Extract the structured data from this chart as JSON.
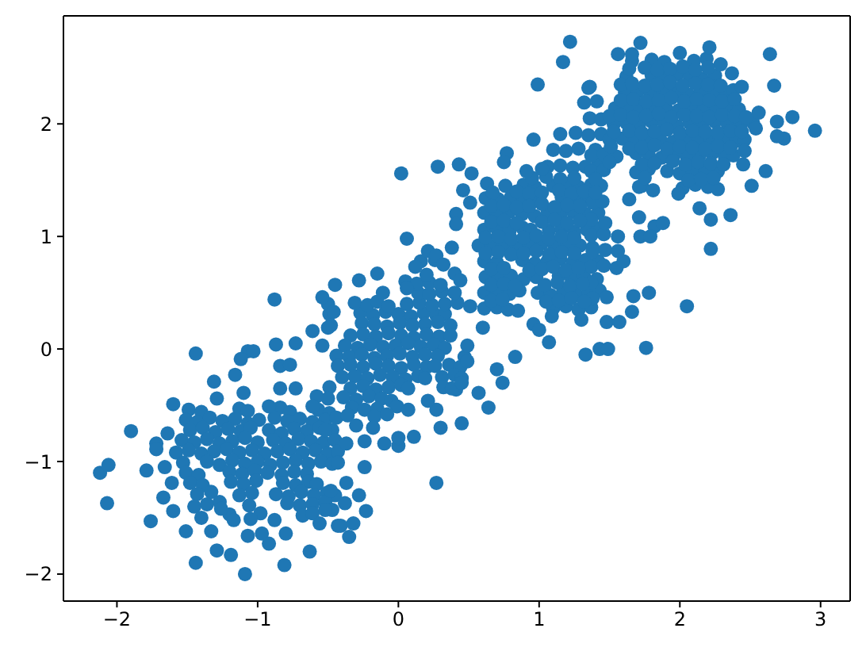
{
  "chart_data": {
    "type": "scatter",
    "color": "#1f77b4",
    "marker": "circle",
    "xlim": [
      -2.38,
      3.21
    ],
    "ylim": [
      -2.24,
      2.96
    ],
    "xticks": [
      -2,
      -1,
      0,
      1,
      2,
      3
    ],
    "yticks": [
      -2,
      -1,
      0,
      1,
      2
    ],
    "x": [
      -1.49,
      -1.4,
      -1.13,
      -1.07,
      -0.84,
      -0.77,
      -0.57,
      -0.49,
      -1.51,
      -1.43,
      -1.34,
      -1.25,
      -1.16,
      -1.07,
      -0.99,
      -0.88,
      -0.79,
      -0.7,
      -0.61,
      -0.52,
      -0.44,
      -1.48,
      -1.39,
      -1.3,
      -1.21,
      -1.12,
      -1.05,
      -0.92,
      -0.83,
      -0.74,
      -0.65,
      -0.56,
      -0.47,
      -1.54,
      -1.45,
      -1.36,
      -1.27,
      -1.18,
      -1.09,
      -1.0,
      -0.89,
      -0.8,
      -0.71,
      -0.62,
      -0.53,
      -0.45,
      -1.58,
      -1.49,
      -1.4,
      -1.31,
      -1.22,
      -1.13,
      -1.04,
      -0.95,
      -0.86,
      -0.77,
      -0.68,
      -0.59,
      -0.5,
      -0.43,
      -1.53,
      -1.36,
      -1.27,
      -1.18,
      -1.09,
      -1.0,
      -0.91,
      -0.82,
      -0.73,
      -0.64,
      -0.55,
      -0.47,
      -1.51,
      -1.42,
      -1.2,
      -1.11,
      -1.02,
      -0.93,
      -0.83,
      -0.74,
      -0.65,
      -1.48,
      -1.39,
      -1.19,
      -1.1,
      -1.01,
      -0.82,
      -0.73,
      -0.64,
      -0.58,
      -1.43,
      -1.33,
      -1.13,
      -1.04,
      -0.87,
      -0.78,
      -0.69,
      -0.6,
      -0.51,
      -0.45,
      -1.36,
      -1.27,
      -1.06,
      -0.79,
      -0.7,
      -0.61,
      -0.52,
      -1.2,
      -0.98,
      -0.68,
      -0.61,
      -0.49,
      -0.27,
      -0.18,
      -0.09,
      0.0,
      0.09,
      0.18,
      0.27,
      0.33,
      -0.48,
      -0.26,
      -0.17,
      -0.08,
      0.01,
      0.1,
      0.19,
      0.28,
      0.37,
      -0.34,
      -0.25,
      -0.16,
      -0.07,
      0.02,
      0.11,
      0.2,
      0.29,
      0.37,
      -0.38,
      -0.29,
      -0.2,
      -0.11,
      -0.02,
      0.07,
      0.16,
      0.25,
      0.33,
      -0.44,
      -0.35,
      -0.26,
      -0.17,
      -0.08,
      0.01,
      0.1,
      0.19,
      0.28,
      0.47,
      -0.43,
      -0.34,
      -0.25,
      -0.16,
      -0.07,
      0.02,
      0.11,
      0.2,
      0.26,
      0.36,
      0.44,
      -0.4,
      -0.31,
      -0.22,
      -0.13,
      -0.04,
      0.05,
      0.14,
      0.19,
      0.31,
      0.4,
      0.45,
      -0.49,
      -0.34,
      -0.25,
      -0.16,
      -0.07,
      0.02,
      0.07,
      0.32,
      0.41,
      -0.5,
      -0.39,
      -0.3,
      -0.21,
      -0.12,
      -0.05,
      -0.33,
      -0.24,
      -0.15,
      -0.01,
      0.07,
      -0.36,
      -0.17,
      -0.08,
      -0.5,
      -0.31,
      -0.22,
      -0.15,
      -0.07,
      0.06,
      0.15,
      0.24,
      0.33,
      0.42,
      0.51,
      0.14,
      0.22,
      0.31,
      0.4,
      0.05,
      0.13,
      0.22,
      0.3,
      0.2,
      0.4,
      0.76,
      0.89,
      0.97,
      1.1,
      1.19,
      1.28,
      1.37,
      1.44,
      0.62,
      0.71,
      0.8,
      0.89,
      0.98,
      1.16,
      1.25,
      1.34,
      0.41,
      0.61,
      0.7,
      0.79,
      0.88,
      0.97,
      1.06,
      1.15,
      1.24,
      1.33,
      1.42,
      0.61,
      0.7,
      0.79,
      0.88,
      0.94,
      1.07,
      1.16,
      1.25,
      1.34,
      1.42,
      0.57,
      0.66,
      0.75,
      0.84,
      0.93,
      1.02,
      1.11,
      1.2,
      1.29,
      1.38,
      0.16,
      0.26,
      0.61,
      0.7,
      0.88,
      0.97,
      1.06,
      1.15,
      1.24,
      1.33,
      1.42,
      0.62,
      0.71,
      0.8,
      0.89,
      0.98,
      1.14,
      1.23,
      1.32,
      1.41,
      0.61,
      0.7,
      0.79,
      0.86,
      0.99,
      1.08,
      1.17,
      1.26,
      1.35,
      1.43,
      0.61,
      0.7,
      0.78,
      1.1,
      1.19,
      1.28,
      1.37,
      1.32,
      1.41,
      1.36,
      1.44,
      1.15,
      1.26,
      1.35,
      1.44,
      1.1,
      1.19,
      1.28,
      1.4,
      1.06,
      1.15,
      1.24,
      1.33,
      1.42,
      0.95,
      1.05,
      1.15,
      1.25,
      1.66,
      1.8,
      1.89,
      2.1,
      2.19,
      1.62,
      1.8,
      1.89,
      1.98,
      2.07,
      2.16,
      2.25,
      1.61,
      1.7,
      1.79,
      1.88,
      1.97,
      2.06,
      2.15,
      2.24,
      2.33,
      2.38,
      1.54,
      1.63,
      1.72,
      1.81,
      1.9,
      1.99,
      2.08,
      2.17,
      2.26,
      2.35,
      2.42,
      1.53,
      1.62,
      1.71,
      1.8,
      1.89,
      1.98,
      2.07,
      2.16,
      2.25,
      2.34,
      2.43,
      2.52,
      1.5,
      1.59,
      1.68,
      1.77,
      1.86,
      1.95,
      2.04,
      2.13,
      2.22,
      2.31,
      2.4,
      2.46,
      1.37,
      1.46,
      1.55,
      1.69,
      1.78,
      1.87,
      1.96,
      2.05,
      2.14,
      2.23,
      2.32,
      2.38,
      1.37,
      1.46,
      1.69,
      1.78,
      1.91,
      2.0,
      2.09,
      2.18,
      2.27,
      1.73,
      2.02,
      2.11,
      2.2,
      2.27,
      1.38,
      1.45,
      1.37,
      1.37,
      1.46,
      1.56,
      1.38,
      1.47,
      1.37,
      1.46,
      1.55,
      1.37,
      1.38,
      1.48,
      -1.44,
      -1.07,
      -1.03,
      -1.12,
      -1.16,
      -0.87,
      -0.73,
      -0.61,
      -0.5,
      -0.46,
      -0.54,
      -0.84,
      -0.77,
      -1.31,
      -0.84,
      -0.73,
      -1.6,
      -1.29,
      -1.1,
      -0.92,
      -1.9,
      -1.64,
      -1.72,
      -1.72,
      -2.12,
      -2.06,
      -2.07,
      -1.79,
      -1.66,
      -1.61,
      -1.67,
      -1.6,
      -1.76,
      -1.51,
      -1.44,
      -1.09,
      -1.19,
      -1.29,
      -1.33,
      -1.07,
      -0.97,
      -0.92,
      -0.81,
      -0.8,
      -0.63,
      -0.88,
      -1.17,
      -1.05,
      -1.45,
      -1.4,
      -1.26,
      -0.48,
      -0.56,
      -0.43,
      -0.47,
      0.27,
      -0.24,
      -0.28,
      -0.23,
      -0.38,
      -0.35,
      -0.41,
      -0.32,
      -0.37,
      -0.52,
      -0.43,
      0.11,
      0.0,
      0.0,
      -0.1,
      -0.24,
      -0.37,
      0.3,
      0.45,
      0.64,
      0.74,
      0.7,
      0.83,
      0.6,
      0.27,
      0.21,
      1.07,
      0.96,
      1.0,
      1.09,
      1.33,
      1.3,
      1.43,
      0.85,
      0.38,
      0.45,
      0.57,
      0.49,
      0.49,
      -0.52,
      -0.3,
      -0.18,
      1.76,
      1.49,
      1.48,
      1.57,
      1.66,
      2.05,
      2.96,
      2.8,
      2.69,
      2.74,
      2.69,
      2.64,
      2.67,
      2.61,
      2.51,
      2.45,
      2.36,
      2.22,
      2.14,
      2.22,
      2.21,
      2.0,
      1.72,
      1.56,
      1.66,
      1.36,
      2.29,
      2.37,
      2.44,
      2.56,
      2.54,
      2.46,
      1.99,
      1.81,
      1.71,
      1.64,
      1.71,
      1.82,
      1.88,
      1.72,
      1.79,
      1.6,
      1.78,
      1.67,
      1.56,
      1.22,
      1.17,
      0.99,
      1.35,
      0.96,
      0.77,
      0.75,
      0.02,
      0.28,
      0.43,
      0.52,
      0.46,
      0.51,
      0.63,
      0.06,
      0.41,
      -0.15,
      -0.28,
      -0.45,
      0.21,
      0.27,
      0.12,
      0.32,
      0.44,
      0.38,
      0.06,
      -0.11,
      0.91,
      1.02,
      -0.88,
      -0.54,
      -0.58,
      -0.61,
      1.64,
      1.75,
      1.84,
      1.93,
      2.02,
      2.11,
      2.2,
      1.58,
      1.66,
      1.75,
      1.84,
      1.93,
      2.02,
      2.11,
      2.2,
      2.29,
      1.58,
      1.67,
      1.76,
      1.85,
      1.94,
      2.03,
      2.12,
      2.21,
      2.3,
      2.39,
      1.5,
      1.58,
      1.67,
      1.76,
      1.85,
      1.94,
      2.03,
      2.12,
      2.21,
      2.3,
      2.39,
      2.47,
      1.53,
      1.64,
      1.73,
      1.82,
      1.91,
      2.0,
      2.09,
      2.18,
      2.27,
      2.36,
      2.44,
      1.51,
      1.64,
      1.73,
      1.82,
      1.91,
      2.0,
      2.09,
      2.18,
      2.27,
      2.36,
      1.5,
      1.73,
      1.82,
      1.95,
      2.04,
      2.13,
      2.22,
      2.31,
      1.4,
      1.75,
      2.06,
      2.15,
      2.24,
      0.67,
      0.84,
      0.93,
      1.02,
      1.14,
      1.23,
      1.32,
      1.4,
      0.66,
      0.75,
      0.84,
      0.93,
      1.02,
      1.11,
      1.2,
      1.29,
      0.66,
      0.75,
      0.84,
      1.02,
      1.11,
      1.2,
      1.29,
      1.47,
      0.62,
      0.71,
      0.8,
      0.89,
      0.98,
      1.07,
      1.16,
      1.25,
      0.62,
      0.71,
      0.8,
      0.89,
      0.98,
      1.07,
      1.16,
      1.25,
      0.66,
      0.75,
      0.93,
      1.02,
      1.1,
      1.19,
      1.28,
      0.66,
      0.75,
      0.83,
      1.04,
      1.13,
      1.22,
      1.31,
      0.66,
      0.74,
      1.05,
      1.14,
      1.23,
      1.32
    ],
    "values": [
      -0.54,
      -0.56,
      -0.53,
      -0.55,
      -0.52,
      -0.56,
      -0.54,
      -0.57,
      -0.63,
      -0.65,
      -0.61,
      -0.64,
      -0.62,
      -0.66,
      -0.63,
      -0.61,
      -0.64,
      -0.62,
      -0.65,
      -0.63,
      -0.61,
      -0.72,
      -0.7,
      -0.74,
      -0.71,
      -0.73,
      -0.7,
      -0.72,
      -0.75,
      -0.71,
      -0.73,
      -0.7,
      -0.72,
      -0.81,
      -0.83,
      -0.8,
      -0.84,
      -0.82,
      -0.79,
      -0.83,
      -0.81,
      -0.84,
      -0.8,
      -0.82,
      -0.83,
      -0.81,
      -0.92,
      -0.9,
      -0.93,
      -0.91,
      -0.89,
      -0.92,
      -0.9,
      -0.93,
      -0.91,
      -0.89,
      -0.92,
      -0.9,
      -0.93,
      -0.91,
      -1.01,
      -1.0,
      -1.03,
      -0.99,
      -1.02,
      -1.0,
      -1.03,
      -1.01,
      -0.99,
      -1.02,
      -1.0,
      -1.02,
      -1.1,
      -1.12,
      -1.09,
      -1.11,
      -1.08,
      -1.1,
      -1.12,
      -1.09,
      -1.11,
      -1.19,
      -1.21,
      -1.18,
      -1.2,
      -1.17,
      -1.19,
      -1.21,
      -1.18,
      -1.2,
      -1.29,
      -1.27,
      -1.3,
      -1.28,
      -1.29,
      -1.31,
      -1.27,
      -1.3,
      -1.28,
      -1.3,
      -1.38,
      -1.36,
      -1.39,
      -1.37,
      -1.39,
      -1.38,
      -1.36,
      -1.47,
      -1.46,
      -1.48,
      -1.46,
      0.31,
      0.32,
      0.3,
      0.33,
      0.31,
      0.29,
      0.32,
      0.3,
      0.31,
      0.21,
      0.23,
      0.22,
      0.2,
      0.23,
      0.21,
      0.22,
      0.24,
      0.21,
      0.12,
      0.13,
      0.11,
      0.14,
      0.12,
      0.1,
      0.13,
      0.11,
      0.12,
      0.03,
      0.01,
      0.04,
      0.02,
      0.03,
      0.05,
      0.02,
      0.04,
      0.01,
      -0.06,
      -0.07,
      -0.05,
      -0.08,
      -0.06,
      -0.04,
      -0.07,
      -0.05,
      -0.06,
      -0.07,
      -0.15,
      -0.14,
      -0.16,
      -0.13,
      -0.15,
      -0.17,
      -0.14,
      -0.16,
      -0.15,
      -0.14,
      -0.16,
      -0.25,
      -0.24,
      -0.26,
      -0.23,
      -0.25,
      -0.27,
      -0.24,
      -0.26,
      -0.25,
      -0.23,
      -0.26,
      -0.34,
      -0.35,
      -0.33,
      -0.36,
      -0.34,
      -0.32,
      -0.35,
      -0.34,
      -0.36,
      -0.44,
      -0.43,
      -0.45,
      -0.42,
      -0.44,
      -0.46,
      -0.52,
      -0.54,
      -0.53,
      -0.51,
      -0.54,
      -0.59,
      -0.6,
      -0.58,
      0.4,
      0.41,
      0.39,
      0.42,
      0.38,
      0.4,
      0.41,
      0.39,
      0.4,
      0.41,
      0.38,
      0.5,
      0.49,
      0.51,
      0.5,
      0.6,
      0.58,
      0.59,
      0.57,
      0.66,
      0.67,
      1.45,
      1.46,
      1.44,
      1.45,
      1.47,
      1.44,
      1.46,
      1.45,
      1.34,
      1.33,
      1.35,
      1.32,
      1.34,
      1.35,
      1.33,
      1.34,
      1.2,
      1.21,
      1.19,
      1.22,
      1.2,
      1.18,
      1.21,
      1.19,
      1.22,
      1.2,
      1.21,
      1.06,
      1.07,
      1.05,
      1.08,
      1.06,
      1.05,
      1.07,
      1.04,
      1.06,
      1.07,
      0.92,
      0.91,
      0.93,
      0.9,
      0.92,
      0.94,
      0.91,
      0.93,
      0.92,
      0.9,
      0.78,
      0.79,
      0.78,
      0.77,
      0.79,
      0.76,
      0.78,
      0.8,
      0.77,
      0.79,
      0.78,
      0.64,
      0.63,
      0.65,
      0.62,
      0.64,
      0.65,
      0.63,
      0.64,
      0.62,
      0.5,
      0.51,
      0.49,
      0.52,
      0.5,
      0.48,
      0.51,
      0.49,
      0.5,
      0.52,
      0.36,
      0.37,
      0.35,
      0.36,
      0.38,
      0.35,
      0.37,
      2.19,
      2.2,
      2.05,
      2.04,
      1.91,
      1.92,
      1.9,
      1.91,
      1.77,
      1.76,
      1.78,
      1.77,
      1.62,
      1.63,
      1.61,
      1.62,
      1.64,
      1.52,
      1.53,
      1.51,
      1.52,
      2.56,
      2.57,
      2.55,
      2.56,
      2.58,
      2.42,
      2.43,
      2.41,
      2.44,
      2.42,
      2.4,
      2.43,
      2.28,
      2.29,
      2.27,
      2.3,
      2.28,
      2.26,
      2.29,
      2.27,
      2.28,
      2.3,
      2.14,
      2.15,
      2.13,
      2.16,
      2.14,
      2.12,
      2.15,
      2.13,
      2.14,
      2.16,
      2.13,
      2.0,
      2.01,
      1.99,
      2.02,
      2.0,
      1.98,
      2.01,
      1.99,
      2.02,
      2.0,
      1.98,
      2.01,
      1.86,
      1.87,
      1.85,
      1.88,
      1.86,
      1.84,
      1.87,
      1.85,
      1.86,
      1.88,
      1.85,
      1.86,
      1.72,
      1.73,
      1.71,
      1.74,
      1.72,
      1.7,
      1.73,
      1.71,
      1.72,
      1.74,
      1.71,
      1.72,
      1.58,
      1.59,
      1.57,
      1.6,
      1.58,
      1.56,
      1.59,
      1.57,
      1.58,
      1.45,
      1.43,
      1.46,
      1.44,
      1.42,
      1.3,
      1.31,
      1.15,
      1.01,
      1.02,
      1.0,
      0.87,
      0.88,
      0.73,
      0.74,
      0.72,
      0.59,
      0.45,
      0.46,
      -0.04,
      -0.02,
      -0.02,
      -0.09,
      -0.23,
      0.04,
      0.05,
      0.16,
      0.19,
      0.33,
      0.03,
      -0.15,
      -0.14,
      -0.29,
      -0.35,
      -0.35,
      -0.49,
      -0.44,
      -0.39,
      -0.51,
      -0.73,
      -0.75,
      -0.84,
      -0.89,
      -1.1,
      -1.03,
      -1.37,
      -1.08,
      -1.05,
      -1.19,
      -1.32,
      -1.44,
      -1.53,
      -1.62,
      -1.9,
      -2.0,
      -1.83,
      -1.79,
      -1.62,
      -1.66,
      -1.64,
      -1.73,
      -1.92,
      -1.64,
      -1.8,
      -1.52,
      -1.52,
      -1.51,
      -1.4,
      -1.5,
      -1.42,
      -1.26,
      -1.55,
      -1.57,
      -1.43,
      -1.19,
      -1.05,
      -1.3,
      -1.44,
      -1.37,
      -1.67,
      -1.57,
      -1.55,
      -1.19,
      -1.43,
      -1.01,
      -0.78,
      -0.86,
      -0.79,
      -0.84,
      -0.82,
      -0.84,
      -0.7,
      -0.66,
      -0.52,
      -0.3,
      -0.18,
      -0.07,
      0.19,
      -0.54,
      -0.46,
      0.06,
      0.22,
      0.17,
      0.29,
      -0.05,
      0.26,
      0.0,
      0.34,
      -0.35,
      -0.3,
      -0.39,
      -0.11,
      0.03,
      -0.72,
      -0.68,
      -0.7,
      0.01,
      0.0,
      0.24,
      0.24,
      0.33,
      0.38,
      1.94,
      2.06,
      2.02,
      1.87,
      1.89,
      2.62,
      2.34,
      1.58,
      1.45,
      1.64,
      1.19,
      1.15,
      1.25,
      0.89,
      2.68,
      2.63,
      2.72,
      2.62,
      2.62,
      2.33,
      2.53,
      2.45,
      2.33,
      2.1,
      1.96,
      1.76,
      1.38,
      1.41,
      1.44,
      1.33,
      1.17,
      1.09,
      1.12,
      1.0,
      1.0,
      0.78,
      0.5,
      0.47,
      0.87,
      2.73,
      2.55,
      2.35,
      2.32,
      1.86,
      1.74,
      1.66,
      1.56,
      1.62,
      1.64,
      1.56,
      1.41,
      1.3,
      1.47,
      0.98,
      1.11,
      0.67,
      0.61,
      0.57,
      0.87,
      0.83,
      0.73,
      0.75,
      0.61,
      0.9,
      0.54,
      0.5,
      1.58,
      1.6,
      0.44,
      0.46,
      -0.42,
      -0.51,
      2.49,
      2.5,
      2.48,
      2.49,
      2.51,
      2.48,
      2.5,
      2.35,
      2.36,
      2.34,
      2.35,
      2.37,
      2.34,
      2.36,
      2.35,
      2.34,
      2.21,
      2.22,
      2.2,
      2.21,
      2.23,
      2.2,
      2.22,
      2.21,
      2.2,
      2.22,
      2.07,
      2.08,
      2.06,
      2.07,
      2.09,
      2.06,
      2.08,
      2.07,
      2.06,
      2.08,
      2.07,
      2.06,
      1.93,
      1.94,
      1.92,
      1.93,
      1.95,
      1.92,
      1.94,
      1.93,
      1.92,
      1.94,
      1.93,
      1.8,
      1.78,
      1.79,
      1.81,
      1.78,
      1.8,
      1.79,
      1.78,
      1.8,
      1.79,
      1.66,
      1.64,
      1.65,
      1.67,
      1.64,
      1.66,
      1.65,
      1.64,
      1.51,
      1.52,
      1.5,
      1.51,
      1.52,
      1.39,
      1.4,
      1.38,
      1.39,
      1.41,
      1.38,
      1.4,
      1.39,
      1.27,
      1.28,
      1.26,
      1.27,
      1.29,
      1.26,
      1.28,
      1.27,
      1.13,
      1.14,
      1.12,
      1.13,
      1.15,
      1.12,
      1.14,
      1.12,
      0.99,
      1.0,
      0.98,
      0.99,
      1.01,
      0.98,
      1.0,
      0.99,
      0.85,
      0.86,
      0.84,
      0.85,
      0.87,
      0.84,
      0.86,
      0.85,
      0.71,
      0.72,
      0.7,
      0.71,
      0.73,
      0.7,
      0.72,
      0.57,
      0.58,
      0.56,
      0.57,
      0.59,
      0.56,
      0.58,
      0.43,
      0.44,
      0.42,
      0.43,
      0.45,
      0.42
    ]
  }
}
